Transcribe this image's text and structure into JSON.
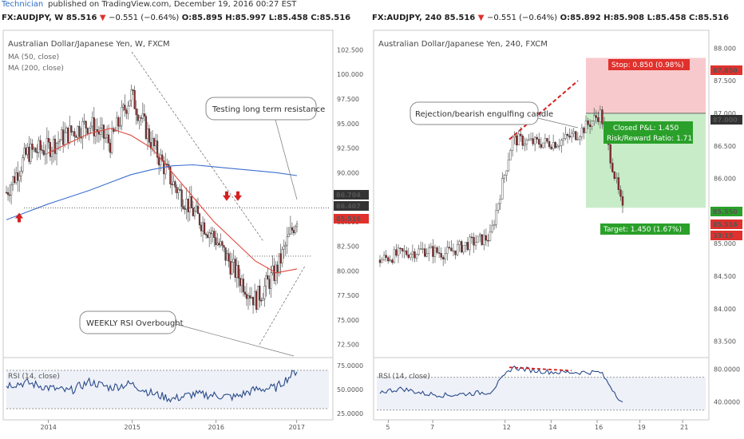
{
  "topbar": {
    "author": "Technician",
    "published": "published on TradingView.com, December 19, 2016 00:27 EST"
  },
  "left": {
    "header": {
      "symbol": "FX:AUDJPY, W",
      "price": "85.516",
      "change": "−0.551 (−0.64%)",
      "o": "O:85.895",
      "h": "H:85.997",
      "l": "L:85.458",
      "c": "C:85.516"
    },
    "title": "Australian Dollar/Japanese Yen, W, FXCM",
    "ma50": "MA (50, close)",
    "ma200": "MA (200, close)",
    "callout1": "Testing long term resistance",
    "callout2": "WEEKLY RSI Overbought",
    "rsi_label": "RSI (14, close)",
    "price_ticks": [
      "102.500",
      "100.000",
      "97.500",
      "95.000",
      "92.500",
      "90.000",
      "87.500",
      "85.000",
      "82.500",
      "80.000",
      "77.500",
      "75.000",
      "72.500"
    ],
    "price_badges": {
      "b1": "86.704",
      "b2": "86.407",
      "b3": "85.516"
    },
    "rsi_ticks": [
      "75.0000",
      "50.0000",
      "25.0000"
    ],
    "x_ticks": [
      "2014",
      "2015",
      "2016",
      "2017"
    ]
  },
  "right": {
    "header": {
      "symbol": "FX:AUDJPY, 240",
      "price": "85.516",
      "change": "−0.551 (−0.64%)",
      "o": "O:85.892",
      "h": "H:85.908",
      "l": "L:85.458",
      "c": "C:85.516"
    },
    "title": "Australian Dollar/Japanese Yen, 240, FXCM",
    "callout": "Rejection/bearish engulfing candle",
    "stop_label": "Stop: 0.850 (0.98%)",
    "pl_label1": "Closed P&L: 1.450",
    "pl_label2": "Risk/Reward Ratio: 1.71",
    "target_label": "Target: 1.450 (1.67%)",
    "rsi_label": "RSI (14, close)",
    "price_ticks": [
      "88.000",
      "87.500",
      "87.000",
      "86.500",
      "86.000",
      "85.500",
      "85.000",
      "84.500",
      "84.000",
      "83.500"
    ],
    "price_badges": {
      "stop": "87.850",
      "entry": "87.000",
      "target": "85.550",
      "last": "85.516",
      "timer": "33:15"
    },
    "rsi_ticks": [
      "80.0000",
      "40.0000"
    ],
    "x_ticks": [
      "5",
      "7",
      "12",
      "14",
      "16",
      "19",
      "21"
    ]
  },
  "colors": {
    "up": "#ffffff",
    "down": "#8b2b2b",
    "ma50": "#e0453a",
    "ma200": "#3b6fcf",
    "rsi": "#2a4a8a",
    "badge_red": "#e0312c",
    "stop_fill": "#f8c9cc",
    "target_fill": "#c8ecc8",
    "green": "#2aa02a"
  },
  "chart_data": [
    {
      "type": "line",
      "title": "Australian Dollar/Japanese Yen, W, FXCM",
      "xlabel": "",
      "ylabel": "",
      "x": [
        "2013-07",
        "2013-10",
        "2014-01",
        "2014-04",
        "2014-07",
        "2014-10",
        "2015-01",
        "2015-04",
        "2015-07",
        "2015-10",
        "2016-01",
        "2016-04",
        "2016-07",
        "2016-10",
        "2016-12"
      ],
      "series": [
        {
          "name": "MA (50, close)",
          "values": [
            null,
            null,
            92.0,
            93.0,
            94.0,
            94.5,
            93.8,
            92.5,
            90.0,
            87.5,
            85.0,
            83.0,
            81.0,
            79.8,
            80.2
          ]
        },
        {
          "name": "MA (200, close)",
          "values": [
            85.2,
            86.0,
            86.8,
            87.5,
            88.2,
            89.0,
            89.8,
            90.3,
            90.7,
            90.8,
            90.6,
            90.4,
            90.2,
            90.0,
            89.7
          ]
        }
      ],
      "close": [
        88.0,
        92.0,
        92.5,
        94.0,
        95.0,
        93.0,
        98.0,
        93.0,
        89.0,
        86.0,
        83.5,
        80.0,
        77.0,
        80.0,
        85.5
      ],
      "ylim": [
        71.5,
        104.0
      ],
      "rsi": {
        "name": "RSI (14, close)",
        "ylim": [
          20,
          80
        ],
        "values": [
          55,
          57,
          52,
          48,
          58,
          52,
          56,
          46,
          40,
          45,
          44,
          42,
          50,
          52,
          70
        ]
      }
    },
    {
      "type": "line",
      "title": "Australian Dollar/Japanese Yen, 240, FXCM",
      "xlabel": "",
      "ylabel": "",
      "x": [
        "4",
        "5",
        "6",
        "7",
        "8",
        "9",
        "12",
        "13",
        "14",
        "15",
        "16",
        "19"
      ],
      "close": [
        84.75,
        84.85,
        84.9,
        84.85,
        85.0,
        85.1,
        86.6,
        86.55,
        86.55,
        86.7,
        87.0,
        85.5
      ],
      "ylim": [
        83.3,
        88.2
      ],
      "trade": {
        "stop": 87.85,
        "entry": 87.0,
        "target": 85.55,
        "stop_size": 0.85,
        "target_size": 1.45,
        "risk_reward": 1.71
      },
      "rsi": {
        "name": "RSI (14, close)",
        "ylim": [
          20,
          90
        ],
        "values": [
          52,
          56,
          50,
          48,
          50,
          52,
          82,
          78,
          76,
          76,
          76,
          38
        ]
      }
    }
  ]
}
